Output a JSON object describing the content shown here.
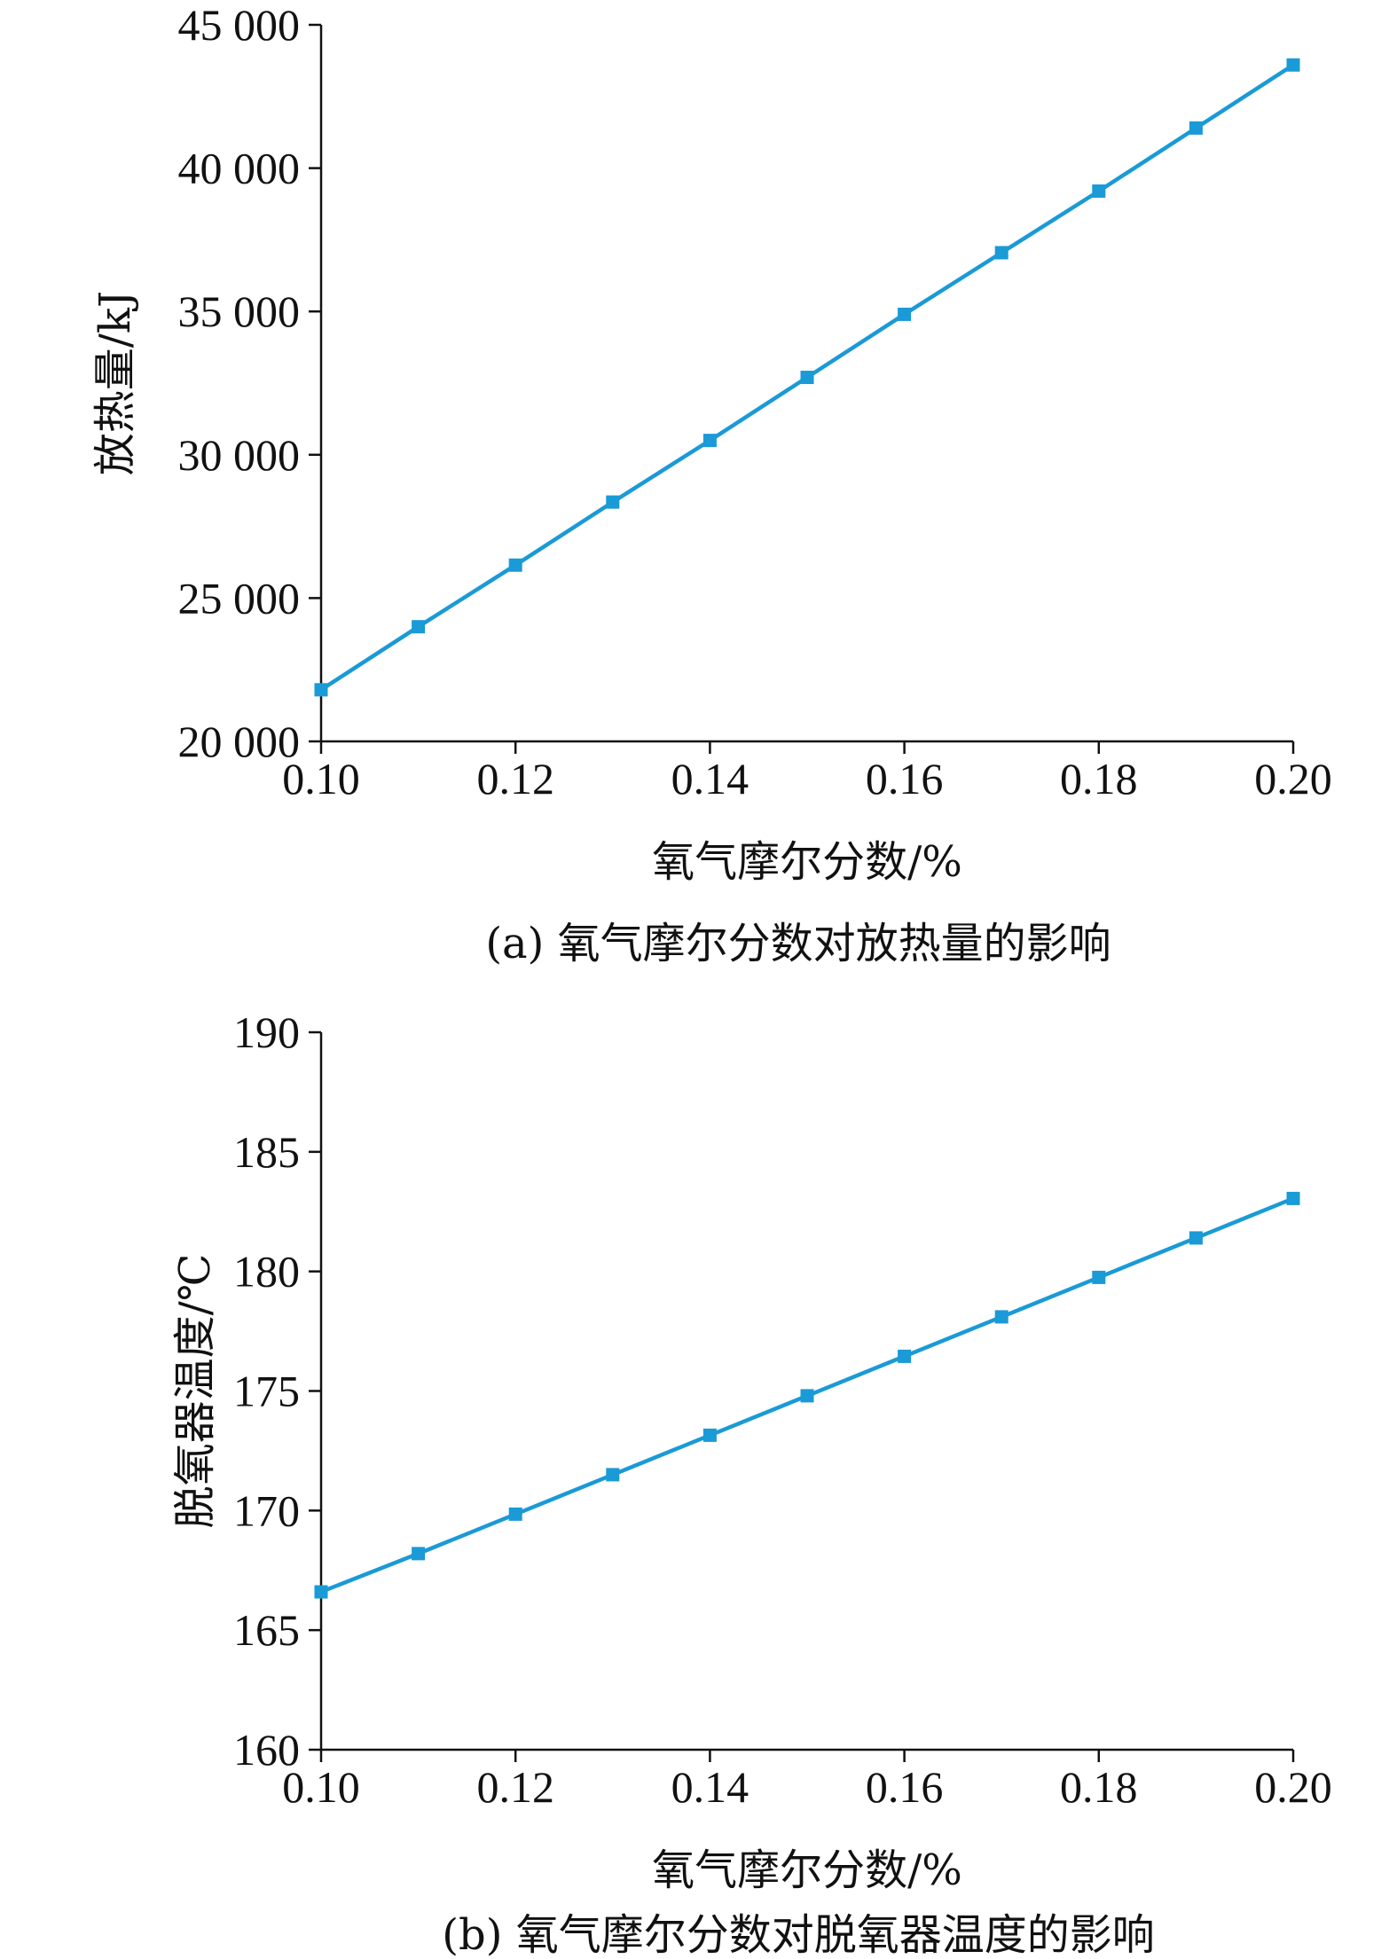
{
  "colors": {
    "series": "#1a9ad6",
    "axis": "#111111"
  },
  "chart_data": [
    {
      "type": "line",
      "caption": "(a) 氧气摩尔分数对放热量的影响",
      "xlabel": "氧气摩尔分数/%",
      "ylabel": "放热量/kJ",
      "xlim": [
        0.1,
        0.2
      ],
      "ylim": [
        20000,
        45000
      ],
      "x_ticks": [
        "0.10",
        "0.12",
        "0.14",
        "0.16",
        "0.18",
        "0.20"
      ],
      "y_ticks": [
        "20 000",
        "25 000",
        "30 000",
        "35 000",
        "40 000",
        "45 000"
      ],
      "grid": false,
      "marker": "square",
      "x": [
        0.1,
        0.11,
        0.12,
        0.13,
        0.14,
        0.15,
        0.16,
        0.17,
        0.18,
        0.19,
        0.2
      ],
      "y": [
        21800,
        24000,
        26150,
        28350,
        30500,
        32700,
        34900,
        37050,
        39200,
        41400,
        43600
      ]
    },
    {
      "type": "line",
      "caption": "(b) 氧气摩尔分数对脱氧器温度的影响",
      "xlabel": "氧气摩尔分数/%",
      "ylabel": "脱氧器温度/℃",
      "xlim": [
        0.1,
        0.2
      ],
      "ylim": [
        160,
        190
      ],
      "x_ticks": [
        "0.10",
        "0.12",
        "0.14",
        "0.16",
        "0.18",
        "0.20"
      ],
      "y_ticks": [
        "160",
        "165",
        "170",
        "175",
        "180",
        "185",
        "190"
      ],
      "grid": false,
      "marker": "square",
      "x": [
        0.1,
        0.11,
        0.12,
        0.13,
        0.14,
        0.15,
        0.16,
        0.17,
        0.18,
        0.19,
        0.2
      ],
      "y": [
        166.6,
        168.2,
        169.85,
        171.5,
        173.15,
        174.8,
        176.45,
        178.1,
        179.75,
        181.4,
        183.05
      ]
    }
  ]
}
